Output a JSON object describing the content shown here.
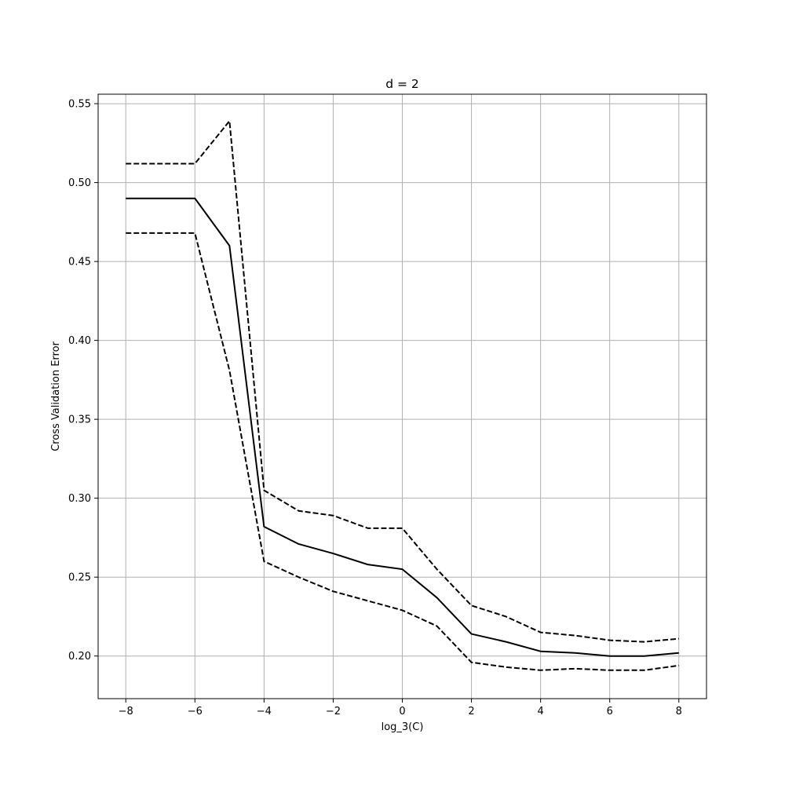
{
  "chart_data": {
    "type": "line",
    "title": "d = 2",
    "xlabel": "log_3(C)",
    "ylabel": "Cross Validation Error",
    "xlim": [
      -8.8,
      8.8
    ],
    "ylim": [
      0.173,
      0.556
    ],
    "xticks": [
      -8,
      -6,
      -4,
      -2,
      0,
      2,
      4,
      6,
      8
    ],
    "xtick_labels": [
      "−8",
      "−6",
      "−4",
      "−2",
      "0",
      "2",
      "4",
      "6",
      "8"
    ],
    "yticks": [
      0.2,
      0.25,
      0.3,
      0.35,
      0.4,
      0.45,
      0.5,
      0.55
    ],
    "ytick_labels": [
      "0.20",
      "0.25",
      "0.30",
      "0.35",
      "0.40",
      "0.45",
      "0.50",
      "0.55"
    ],
    "grid": true,
    "x": [
      -8,
      -7,
      -6,
      -5,
      -4,
      -3,
      -2,
      -1,
      0,
      1,
      2,
      3,
      4,
      5,
      6,
      7,
      8
    ],
    "series": [
      {
        "style": "solid",
        "color": "#000000",
        "values": [
          0.49,
          0.49,
          0.49,
          0.46,
          0.282,
          0.271,
          0.265,
          0.258,
          0.255,
          0.237,
          0.214,
          0.209,
          0.203,
          0.202,
          0.2,
          0.2,
          0.202
        ]
      },
      {
        "style": "dashed",
        "color": "#000000",
        "values": [
          0.512,
          0.512,
          0.512,
          0.539,
          0.305,
          0.292,
          0.289,
          0.281,
          0.281,
          0.255,
          0.232,
          0.225,
          0.215,
          0.213,
          0.21,
          0.209,
          0.211
        ]
      },
      {
        "style": "dashed",
        "color": "#000000",
        "values": [
          0.468,
          0.468,
          0.468,
          0.381,
          0.26,
          0.25,
          0.241,
          0.235,
          0.229,
          0.219,
          0.196,
          0.193,
          0.191,
          0.192,
          0.191,
          0.191,
          0.194
        ]
      }
    ]
  }
}
